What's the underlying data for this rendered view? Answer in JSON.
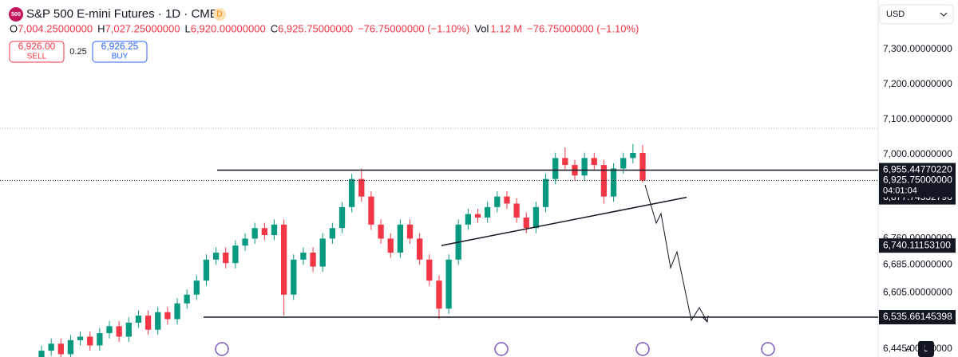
{
  "header": {
    "icon": "500",
    "title": "S&P 500 E-mini Futures · 1D · CME",
    "badge": "D",
    "ohlc": [
      {
        "key": "O",
        "value": "7,004.25000000"
      },
      {
        "key": "H",
        "value": "7,027.25000000"
      },
      {
        "key": "L",
        "value": "6,920.00000000"
      },
      {
        "key": "C",
        "value": "6,925.75000000"
      }
    ],
    "change": "−76.75000000 (−1.10%)",
    "volume_key": "Vol",
    "volume": "1.12 M",
    "change2": "−76.75000000 (−1.10%)"
  },
  "trade": {
    "sell_price": "6,926.00",
    "sell_label": "SELL",
    "spread": "0.25",
    "buy_price": "6,926.25",
    "buy_label": "BUY"
  },
  "currency": "USD",
  "scale_buttons": [
    "A",
    "L"
  ],
  "chart_data": {
    "type": "candlestick",
    "up_color": "#089981",
    "down_color": "#f23645",
    "ylim": [
      6422,
      7441
    ],
    "yticks": [
      {
        "value": 7300,
        "label": "7,300.00000000"
      },
      {
        "value": 7200,
        "label": "7,200.00000000"
      },
      {
        "value": 7100,
        "label": "7,100.00000000"
      },
      {
        "value": 7000,
        "label": "7,000.00000000"
      },
      {
        "value": 6760,
        "label": "6,760.00000000"
      },
      {
        "value": 6685,
        "label": "6,685.00000000"
      },
      {
        "value": 6605,
        "label": "6,605.00000000"
      },
      {
        "value": 6445,
        "label": "6,445.00000000"
      }
    ],
    "open": [
      6420,
      6440,
      6460,
      6430,
      6470,
      6480,
      6455,
      6490,
      6510,
      6480,
      6520,
      6540,
      6500,
      6550,
      6530,
      6575,
      6600,
      6640,
      6700,
      6720,
      6690,
      6740,
      6760,
      6790,
      6770,
      6800,
      6600,
      6700,
      6720,
      6680,
      6760,
      6790,
      6850,
      6930,
      6880,
      6800,
      6760,
      6720,
      6800,
      6760,
      6700,
      6640,
      6560,
      6700,
      6800,
      6830,
      6820,
      6850,
      6880,
      6860,
      6820,
      6790,
      6850,
      6930,
      6990,
      6970,
      6940,
      6990,
      6970,
      6880,
      6960,
      6990,
      7004.25
    ],
    "high": [
      6455,
      6475,
      6475,
      6485,
      6495,
      6495,
      6505,
      6525,
      6525,
      6535,
      6555,
      6555,
      6565,
      6565,
      6590,
      6615,
      6655,
      6715,
      6735,
      6735,
      6755,
      6775,
      6805,
      6805,
      6815,
      6815,
      6715,
      6735,
      6735,
      6775,
      6805,
      6865,
      6945,
      6960,
      6895,
      6815,
      6775,
      6815,
      6815,
      6775,
      6715,
      6655,
      6715,
      6815,
      6845,
      6845,
      6865,
      6895,
      6895,
      6875,
      6835,
      6865,
      6945,
      7005,
      7020,
      6985,
      7005,
      7005,
      6985,
      6975,
      7005,
      7030,
      7027.25
    ],
    "low": [
      6405,
      6425,
      6415,
      6415,
      6455,
      6440,
      6440,
      6475,
      6465,
      6465,
      6505,
      6485,
      6485,
      6515,
      6515,
      6560,
      6585,
      6625,
      6685,
      6675,
      6675,
      6725,
      6745,
      6755,
      6755,
      6540,
      6585,
      6685,
      6665,
      6665,
      6745,
      6775,
      6835,
      6865,
      6785,
      6745,
      6705,
      6705,
      6745,
      6685,
      6625,
      6530,
      6545,
      6685,
      6785,
      6805,
      6805,
      6835,
      6845,
      6805,
      6775,
      6775,
      6835,
      6915,
      6955,
      6925,
      6925,
      6955,
      6860,
      6865,
      6945,
      6975,
      6920
    ],
    "close": [
      6440,
      6460,
      6430,
      6470,
      6480,
      6455,
      6490,
      6510,
      6480,
      6520,
      6540,
      6500,
      6550,
      6530,
      6575,
      6600,
      6640,
      6700,
      6720,
      6690,
      6740,
      6760,
      6790,
      6770,
      6800,
      6600,
      6700,
      6720,
      6680,
      6760,
      6790,
      6850,
      6930,
      6880,
      6800,
      6760,
      6720,
      6800,
      6760,
      6700,
      6640,
      6560,
      6700,
      6800,
      6830,
      6820,
      6850,
      6880,
      6860,
      6820,
      6790,
      6850,
      6930,
      6990,
      6970,
      6940,
      6990,
      6970,
      6880,
      6960,
      6990,
      7004.25,
      6925.75
    ],
    "horizontal_lines": [
      {
        "value": 6955.4477022,
        "label": "6,955.44770220"
      },
      {
        "value": 6535.66145398,
        "label": "6,535.66145398"
      }
    ],
    "trendline": {
      "start": {
        "value": 6740.111531,
        "label": "6,740.11153100"
      },
      "end": {
        "value": 6877.74532796,
        "label": "6,877.74532796"
      }
    },
    "last_price": {
      "value": 6925.75,
      "label": "6,925.75000000",
      "countdown": "04:01:04"
    }
  }
}
